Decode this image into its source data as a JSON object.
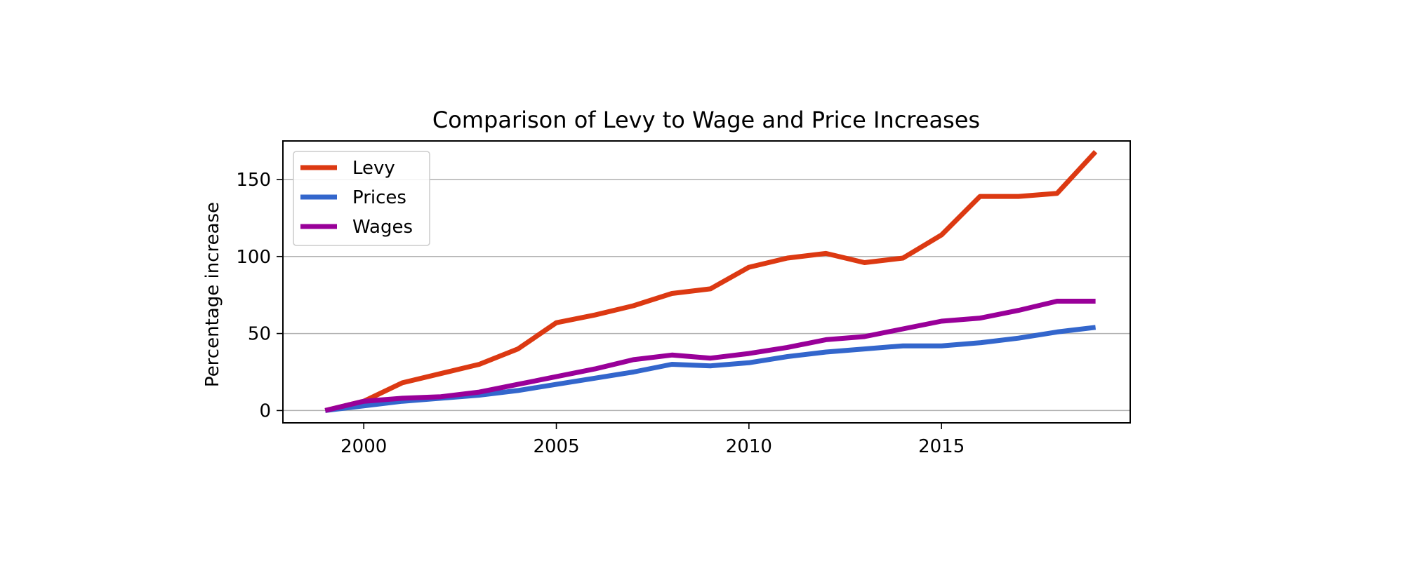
{
  "chart_data": {
    "type": "line",
    "title": "Comparison of Levy to Wage and Price Increases",
    "xlabel": "",
    "ylabel": "Percentage increase",
    "x": [
      1999,
      2000,
      2001,
      2002,
      2003,
      2004,
      2005,
      2006,
      2007,
      2008,
      2009,
      2010,
      2011,
      2012,
      2013,
      2014,
      2015,
      2016,
      2017,
      2018,
      2019
    ],
    "xlim": [
      1997.9,
      2019.9
    ],
    "ylim": [
      -8,
      175
    ],
    "xticks": [
      2000,
      2005,
      2010,
      2015
    ],
    "yticks": [
      0,
      50,
      100,
      150
    ],
    "grid": "horizontal",
    "legend_position": "upper-left",
    "series": [
      {
        "name": "Levy",
        "color": "#dc3912",
        "values": [
          0,
          6,
          18,
          24,
          30,
          40,
          57,
          62,
          68,
          76,
          79,
          93,
          99,
          102,
          96,
          99,
          114,
          139,
          139,
          141,
          168
        ]
      },
      {
        "name": "Prices",
        "color": "#3366cc",
        "values": [
          0,
          3,
          6,
          8,
          10,
          13,
          17,
          21,
          25,
          30,
          29,
          31,
          35,
          38,
          40,
          42,
          42,
          44,
          47,
          51,
          54
        ]
      },
      {
        "name": "Wages",
        "color": "#990099",
        "values": [
          0,
          6,
          8,
          9,
          12,
          17,
          22,
          27,
          33,
          36,
          34,
          37,
          41,
          46,
          48,
          53,
          58,
          60,
          65,
          71,
          71
        ]
      }
    ]
  }
}
